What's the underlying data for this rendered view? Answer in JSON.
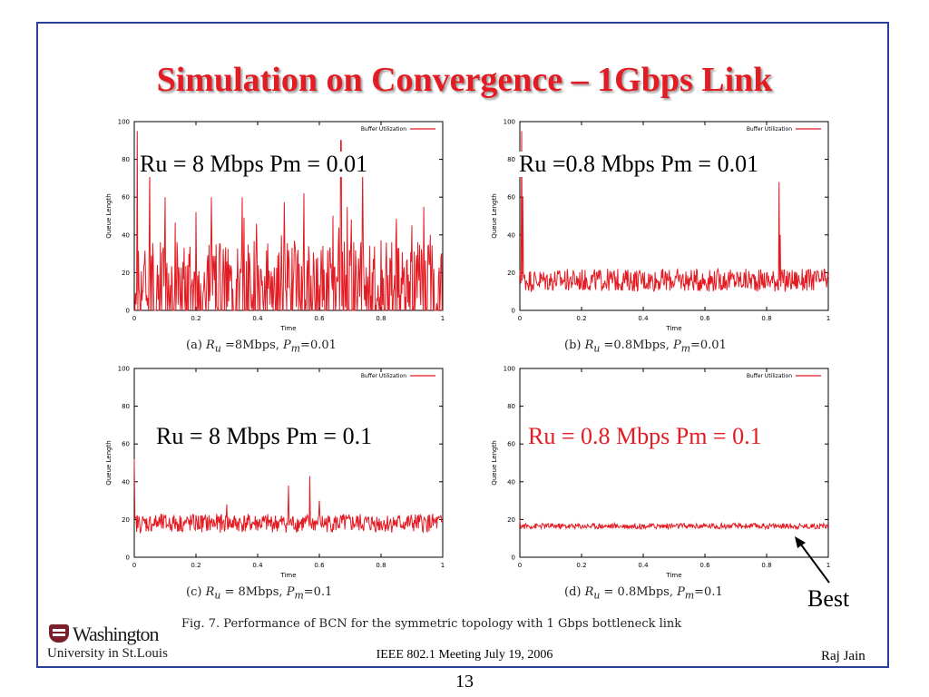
{
  "slide": {
    "title": "Simulation on Convergence – 1Gbps Link",
    "figure_caption": "Fig. 7.   Performance of BCN for the symmetric topology with 1 Gbps bottleneck link",
    "best_label": "Best",
    "footer_center": "IEEE 802.1 Meeting  July 19, 2006",
    "footer_right": "Raj Jain",
    "page_number": "13",
    "logo": {
      "top": "Washington",
      "bottom": "University in St.Louis"
    },
    "colors": {
      "title": "#e31b23",
      "border": "#2a3f9c",
      "series": "#e31b23"
    }
  },
  "panels": [
    {
      "overlay": "Ru = 8 Mbps Pm = 0.01",
      "overlay_red": false,
      "caption": {
        "label": "(a)",
        "sym": "R",
        "sub": "u",
        "eq": " =8Mbps, ",
        "sym2": "P",
        "sub2": "m",
        "eq2": "=0.01"
      }
    },
    {
      "overlay": "Ru =0.8 Mbps Pm = 0.01",
      "overlay_red": false,
      "caption": {
        "label": "(b)",
        "sym": "R",
        "sub": "u",
        "eq": " =0.8Mbps, ",
        "sym2": "P",
        "sub2": "m",
        "eq2": "=0.01"
      }
    },
    {
      "overlay": "Ru = 8 Mbps Pm = 0.1",
      "overlay_red": false,
      "caption": {
        "label": "(c)",
        "sym": "R",
        "sub": "u",
        "eq": " = 8Mbps, ",
        "sym2": "P",
        "sub2": "m",
        "eq2": "=0.1"
      }
    },
    {
      "overlay": "Ru = 0.8 Mbps Pm = 0.1",
      "overlay_red": true,
      "caption": {
        "label": "(d)",
        "sym": "R",
        "sub": "u",
        "eq": " = 0.8Mbps, ",
        "sym2": "P",
        "sub2": "m",
        "eq2": "=0.1"
      }
    }
  ],
  "chart_data": [
    {
      "type": "line",
      "xlabel": "Time",
      "ylabel": "Queue Length",
      "xlim": [
        0,
        1
      ],
      "ylim": [
        0,
        100
      ],
      "xticks": [
        "0",
        "0.2",
        "0.4",
        "0.6",
        "0.8",
        "1"
      ],
      "yticks": [
        "0",
        "20",
        "40",
        "60",
        "80",
        "100"
      ],
      "legend": "Buffer Utilization",
      "legend_position": "top-right",
      "series": [
        {
          "name": "Buffer Utilization",
          "baseline": 15,
          "noise": 22,
          "spikes": 60,
          "spike_points": [
            [
              0.01,
              95
            ],
            [
              0.05,
              75
            ],
            [
              0.1,
              60
            ],
            [
              0.2,
              52
            ],
            [
              0.35,
              60
            ],
            [
              0.55,
              62
            ],
            [
              0.67,
              90
            ],
            [
              0.74,
              75
            ],
            [
              0.9,
              45
            ],
            [
              0.96,
              40
            ]
          ]
        }
      ]
    },
    {
      "type": "line",
      "xlabel": "Time",
      "ylabel": "Queue Length",
      "xlim": [
        0,
        1
      ],
      "ylim": [
        0,
        100
      ],
      "xticks": [
        "0",
        "0.2",
        "0.4",
        "0.6",
        "0.8",
        "1"
      ],
      "yticks": [
        "0",
        "20",
        "40",
        "60",
        "80",
        "100"
      ],
      "legend": "Buffer Utilization",
      "legend_position": "top-right",
      "series": [
        {
          "name": "Buffer Utilization",
          "baseline": 16,
          "noise": 6,
          "spikes": 0,
          "spike_points": [
            [
              0.005,
              95
            ],
            [
              0.01,
              60
            ],
            [
              0.84,
              68
            ],
            [
              0.845,
              40
            ],
            [
              0.86,
              10
            ]
          ]
        }
      ]
    },
    {
      "type": "line",
      "xlabel": "Time",
      "ylabel": "Queue Length",
      "xlim": [
        0,
        1
      ],
      "ylim": [
        0,
        100
      ],
      "xticks": [
        "0",
        "0.2",
        "0.4",
        "0.6",
        "0.8",
        "1"
      ],
      "yticks": [
        "0",
        "20",
        "40",
        "60",
        "80",
        "100"
      ],
      "legend": "Buffer Utilization",
      "legend_position": "top-right",
      "series": [
        {
          "name": "Buffer Utilization",
          "baseline": 18,
          "noise": 5,
          "spikes": 0,
          "spike_points": [
            [
              0.0,
              52
            ],
            [
              0.5,
              38
            ],
            [
              0.57,
              43
            ],
            [
              0.6,
              30
            ],
            [
              0.3,
              28
            ]
          ]
        }
      ]
    },
    {
      "type": "line",
      "xlabel": "Time",
      "ylabel": "Queue Length",
      "xlim": [
        0,
        1
      ],
      "ylim": [
        0,
        100
      ],
      "xticks": [
        "0",
        "0.2",
        "0.4",
        "0.6",
        "0.8",
        "1"
      ],
      "yticks": [
        "0",
        "20",
        "40",
        "60",
        "80",
        "100"
      ],
      "legend": "Buffer Utilization",
      "legend_position": "top-right",
      "series": [
        {
          "name": "Buffer Utilization",
          "baseline": 16.5,
          "noise": 1.5,
          "spikes": 0,
          "spike_points": [
            [
              0.0,
              20
            ]
          ]
        }
      ]
    }
  ]
}
